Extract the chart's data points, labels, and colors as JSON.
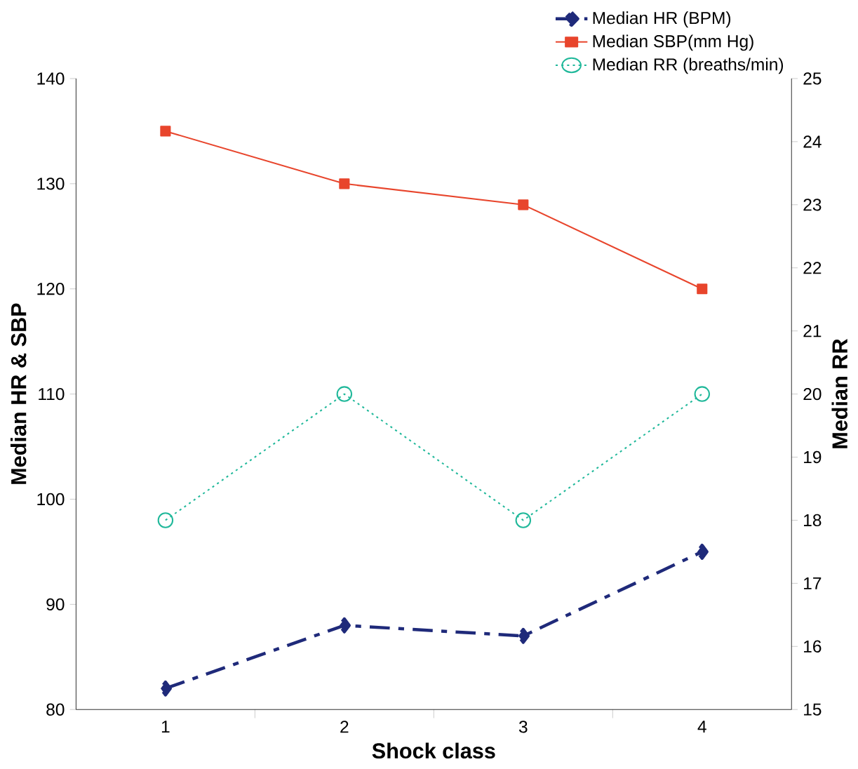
{
  "chart_data": {
    "type": "line",
    "xlabel": "Shock class",
    "ylabel": "Median HR & SBP",
    "y2label": "Median RR",
    "categories": [
      "1",
      "2",
      "3",
      "4"
    ],
    "ylim": [
      80,
      140
    ],
    "yticks": [
      80,
      90,
      100,
      110,
      120,
      130,
      140
    ],
    "y2lim": [
      15,
      25
    ],
    "y2ticks": [
      15,
      16,
      17,
      18,
      19,
      20,
      21,
      22,
      23,
      24,
      25
    ],
    "legend": "top right",
    "series": [
      {
        "name": "Median HR (BPM)",
        "color": "#1f2a7a",
        "marker": "diamond",
        "line_style": "dashed",
        "values": [
          82,
          88,
          87,
          95
        ]
      },
      {
        "name": "Median SBP(mm Hg)",
        "color": "#e8452c",
        "marker": "square",
        "line_style": "solid",
        "values": [
          135,
          130,
          128,
          120
        ]
      },
      {
        "name": "Median RR (breaths/min)",
        "color": "#20b89a",
        "marker": "circle",
        "line_style": "dotted",
        "axis": "y2",
        "values": [
          18,
          20,
          18,
          20
        ]
      }
    ]
  }
}
